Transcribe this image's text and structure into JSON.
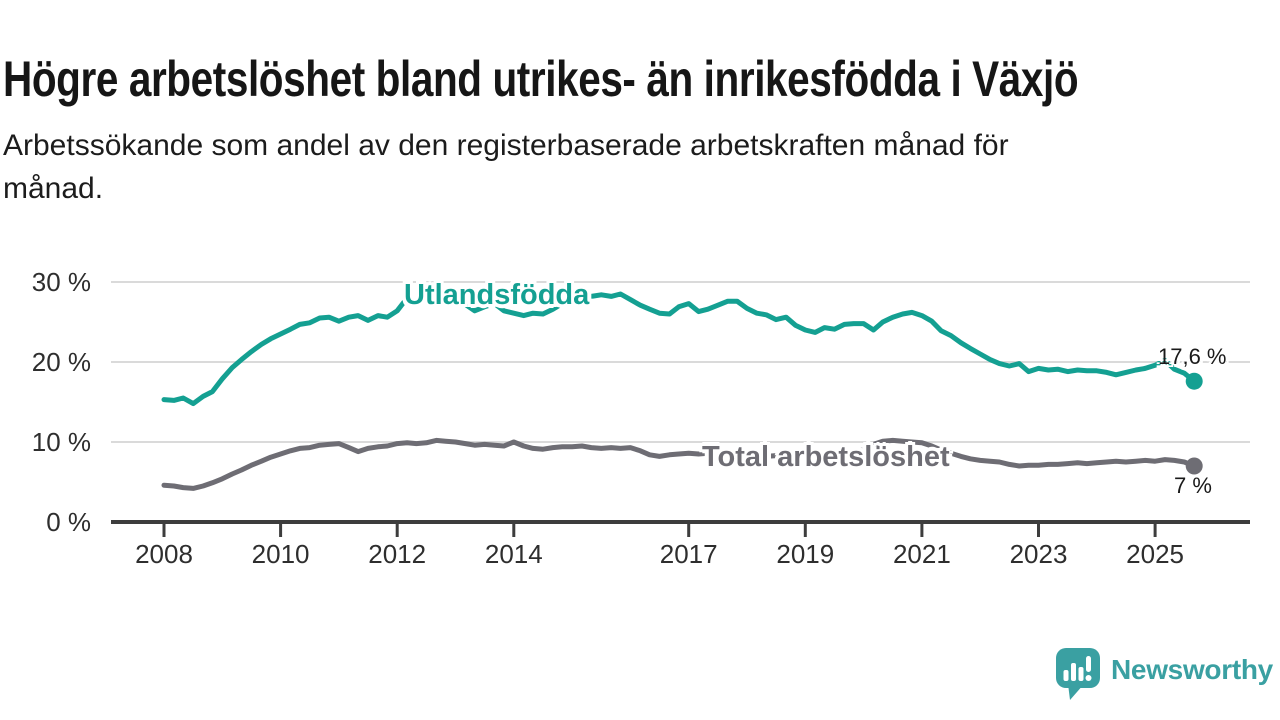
{
  "header": {
    "title": "Högre arbetslöshet bland utrikes- än inrikesfödda i Växjö",
    "subtitle": "Arbetssökande som andel av den registerbaserade arbetskraften månad för månad.",
    "subtitle_lines": [
      "Arbetssökande som andel av den registerbaserade arbetskraften månad för",
      "månad."
    ]
  },
  "chart_data": {
    "type": "line",
    "unit": "%",
    "grid": "horizontal",
    "xlim": [
      2007.1,
      2026.6
    ],
    "ylim": [
      0,
      30
    ],
    "x_ticks": [
      2008,
      2010,
      2012,
      2014,
      2017,
      2019,
      2021,
      2023,
      2025
    ],
    "x_tick_labels": [
      "2008",
      "2010",
      "2012",
      "2014",
      "2017",
      "2019",
      "2021",
      "2023",
      "2025"
    ],
    "y_ticks": [
      0,
      10,
      20,
      30
    ],
    "y_tick_labels": [
      "0 %",
      "10 %",
      "20 %",
      "30 %"
    ],
    "colors": {
      "grid": "#dadada",
      "axis": "#3d3d3d",
      "tick_text": "#2e2e2e"
    },
    "series": [
      {
        "name": "Utlandsfödda",
        "color": "#14a092",
        "end_value": 17.6,
        "end_label": "17,6 %",
        "points": [
          [
            2008.0,
            15.3
          ],
          [
            2008.17,
            15.2
          ],
          [
            2008.33,
            15.5
          ],
          [
            2008.5,
            14.8
          ],
          [
            2008.67,
            15.7
          ],
          [
            2008.83,
            16.3
          ],
          [
            2009.0,
            17.9
          ],
          [
            2009.17,
            19.3
          ],
          [
            2009.33,
            20.3
          ],
          [
            2009.5,
            21.3
          ],
          [
            2009.67,
            22.2
          ],
          [
            2009.83,
            22.9
          ],
          [
            2010.0,
            23.5
          ],
          [
            2010.17,
            24.1
          ],
          [
            2010.33,
            24.7
          ],
          [
            2010.5,
            24.9
          ],
          [
            2010.67,
            25.5
          ],
          [
            2010.83,
            25.6
          ],
          [
            2011.0,
            25.1
          ],
          [
            2011.17,
            25.6
          ],
          [
            2011.33,
            25.8
          ],
          [
            2011.5,
            25.2
          ],
          [
            2011.67,
            25.8
          ],
          [
            2011.83,
            25.6
          ],
          [
            2012.0,
            26.4
          ],
          [
            2012.17,
            28.0
          ],
          [
            2012.33,
            27.4
          ],
          [
            2012.5,
            28.1
          ],
          [
            2012.67,
            27.8
          ],
          [
            2012.83,
            27.7
          ],
          [
            2013.0,
            27.9
          ],
          [
            2013.17,
            27.2
          ],
          [
            2013.33,
            26.4
          ],
          [
            2013.5,
            26.9
          ],
          [
            2013.67,
            27.3
          ],
          [
            2013.83,
            26.4
          ],
          [
            2014.0,
            26.1
          ],
          [
            2014.17,
            25.8
          ],
          [
            2014.33,
            26.1
          ],
          [
            2014.5,
            26.0
          ],
          [
            2014.67,
            26.6
          ],
          [
            2014.83,
            27.3
          ],
          [
            2015.0,
            27.7
          ],
          [
            2015.17,
            28.1
          ],
          [
            2015.33,
            28.2
          ],
          [
            2015.5,
            28.4
          ],
          [
            2015.67,
            28.2
          ],
          [
            2015.83,
            28.5
          ],
          [
            2016.0,
            27.8
          ],
          [
            2016.17,
            27.1
          ],
          [
            2016.33,
            26.6
          ],
          [
            2016.5,
            26.1
          ],
          [
            2016.67,
            26.0
          ],
          [
            2016.83,
            26.9
          ],
          [
            2017.0,
            27.3
          ],
          [
            2017.17,
            26.3
          ],
          [
            2017.33,
            26.6
          ],
          [
            2017.5,
            27.1
          ],
          [
            2017.67,
            27.6
          ],
          [
            2017.83,
            27.6
          ],
          [
            2018.0,
            26.7
          ],
          [
            2018.17,
            26.1
          ],
          [
            2018.33,
            25.9
          ],
          [
            2018.5,
            25.3
          ],
          [
            2018.67,
            25.6
          ],
          [
            2018.83,
            24.6
          ],
          [
            2019.0,
            24.0
          ],
          [
            2019.17,
            23.7
          ],
          [
            2019.33,
            24.3
          ],
          [
            2019.5,
            24.1
          ],
          [
            2019.67,
            24.7
          ],
          [
            2019.83,
            24.8
          ],
          [
            2020.0,
            24.8
          ],
          [
            2020.17,
            24.0
          ],
          [
            2020.33,
            25.0
          ],
          [
            2020.5,
            25.6
          ],
          [
            2020.67,
            26.0
          ],
          [
            2020.83,
            26.2
          ],
          [
            2021.0,
            25.8
          ],
          [
            2021.17,
            25.1
          ],
          [
            2021.33,
            23.9
          ],
          [
            2021.5,
            23.3
          ],
          [
            2021.67,
            22.4
          ],
          [
            2021.83,
            21.7
          ],
          [
            2022.0,
            21.0
          ],
          [
            2022.17,
            20.3
          ],
          [
            2022.33,
            19.8
          ],
          [
            2022.5,
            19.5
          ],
          [
            2022.67,
            19.8
          ],
          [
            2022.83,
            18.8
          ],
          [
            2023.0,
            19.2
          ],
          [
            2023.17,
            19.0
          ],
          [
            2023.33,
            19.1
          ],
          [
            2023.5,
            18.8
          ],
          [
            2023.67,
            19.0
          ],
          [
            2023.83,
            18.9
          ],
          [
            2024.0,
            18.9
          ],
          [
            2024.17,
            18.7
          ],
          [
            2024.33,
            18.4
          ],
          [
            2024.5,
            18.7
          ],
          [
            2024.67,
            19.0
          ],
          [
            2024.83,
            19.2
          ],
          [
            2025.0,
            19.6
          ],
          [
            2025.17,
            20.2
          ],
          [
            2025.33,
            19.1
          ],
          [
            2025.5,
            18.6
          ],
          [
            2025.67,
            17.6
          ]
        ]
      },
      {
        "name": "Total arbetslöshet",
        "color": "#6e6d74",
        "end_value": 7.0,
        "end_label": "7 %",
        "points": [
          [
            2008.0,
            4.6
          ],
          [
            2008.17,
            4.5
          ],
          [
            2008.33,
            4.3
          ],
          [
            2008.5,
            4.2
          ],
          [
            2008.67,
            4.5
          ],
          [
            2008.83,
            4.9
          ],
          [
            2009.0,
            5.4
          ],
          [
            2009.17,
            6.0
          ],
          [
            2009.33,
            6.5
          ],
          [
            2009.5,
            7.1
          ],
          [
            2009.67,
            7.6
          ],
          [
            2009.83,
            8.1
          ],
          [
            2010.0,
            8.5
          ],
          [
            2010.17,
            8.9
          ],
          [
            2010.33,
            9.2
          ],
          [
            2010.5,
            9.3
          ],
          [
            2010.67,
            9.6
          ],
          [
            2010.83,
            9.7
          ],
          [
            2011.0,
            9.8
          ],
          [
            2011.17,
            9.3
          ],
          [
            2011.33,
            8.8
          ],
          [
            2011.5,
            9.2
          ],
          [
            2011.67,
            9.4
          ],
          [
            2011.83,
            9.5
          ],
          [
            2012.0,
            9.8
          ],
          [
            2012.17,
            9.9
          ],
          [
            2012.33,
            9.8
          ],
          [
            2012.5,
            9.9
          ],
          [
            2012.67,
            10.2
          ],
          [
            2012.83,
            10.1
          ],
          [
            2013.0,
            10.0
          ],
          [
            2013.17,
            9.8
          ],
          [
            2013.33,
            9.6
          ],
          [
            2013.5,
            9.7
          ],
          [
            2013.67,
            9.6
          ],
          [
            2013.83,
            9.5
          ],
          [
            2014.0,
            10.0
          ],
          [
            2014.17,
            9.5
          ],
          [
            2014.33,
            9.2
          ],
          [
            2014.5,
            9.1
          ],
          [
            2014.67,
            9.3
          ],
          [
            2014.83,
            9.4
          ],
          [
            2015.0,
            9.4
          ],
          [
            2015.17,
            9.5
          ],
          [
            2015.33,
            9.3
          ],
          [
            2015.5,
            9.2
          ],
          [
            2015.67,
            9.3
          ],
          [
            2015.83,
            9.2
          ],
          [
            2016.0,
            9.3
          ],
          [
            2016.17,
            8.9
          ],
          [
            2016.33,
            8.4
          ],
          [
            2016.5,
            8.2
          ],
          [
            2016.67,
            8.4
          ],
          [
            2016.83,
            8.5
          ],
          [
            2017.0,
            8.6
          ],
          [
            2017.17,
            8.5
          ],
          [
            2017.33,
            8.6
          ],
          [
            2017.5,
            8.3
          ],
          [
            2017.67,
            8.1
          ],
          [
            2017.83,
            8.0
          ],
          [
            2018.0,
            8.2
          ],
          [
            2018.17,
            8.3
          ],
          [
            2018.33,
            8.2
          ],
          [
            2018.5,
            8.3
          ],
          [
            2018.67,
            8.2
          ],
          [
            2018.83,
            8.1
          ],
          [
            2019.0,
            8.2
          ],
          [
            2019.17,
            8.4
          ],
          [
            2019.33,
            8.3
          ],
          [
            2019.5,
            8.4
          ],
          [
            2019.67,
            8.6
          ],
          [
            2019.83,
            8.8
          ],
          [
            2020.0,
            9.0
          ],
          [
            2020.17,
            9.7
          ],
          [
            2020.33,
            10.1
          ],
          [
            2020.5,
            10.2
          ],
          [
            2020.67,
            10.1
          ],
          [
            2020.83,
            10.0
          ],
          [
            2021.0,
            9.9
          ],
          [
            2021.17,
            9.5
          ],
          [
            2021.33,
            9.0
          ],
          [
            2021.5,
            8.6
          ],
          [
            2021.67,
            8.2
          ],
          [
            2021.83,
            7.9
          ],
          [
            2022.0,
            7.7
          ],
          [
            2022.17,
            7.6
          ],
          [
            2022.33,
            7.5
          ],
          [
            2022.5,
            7.2
          ],
          [
            2022.67,
            7.0
          ],
          [
            2022.83,
            7.1
          ],
          [
            2023.0,
            7.1
          ],
          [
            2023.17,
            7.2
          ],
          [
            2023.33,
            7.2
          ],
          [
            2023.5,
            7.3
          ],
          [
            2023.67,
            7.4
          ],
          [
            2023.83,
            7.3
          ],
          [
            2024.0,
            7.4
          ],
          [
            2024.17,
            7.5
          ],
          [
            2024.33,
            7.6
          ],
          [
            2024.5,
            7.5
          ],
          [
            2024.67,
            7.6
          ],
          [
            2024.83,
            7.7
          ],
          [
            2025.0,
            7.6
          ],
          [
            2025.17,
            7.8
          ],
          [
            2025.33,
            7.7
          ],
          [
            2025.5,
            7.5
          ],
          [
            2025.67,
            7.0
          ]
        ]
      }
    ]
  },
  "footer": {
    "brand": "Newsworthy",
    "brand_color": "#3aa0a2",
    "logo_icon": "speech-bubble-bar-chart-icon"
  }
}
